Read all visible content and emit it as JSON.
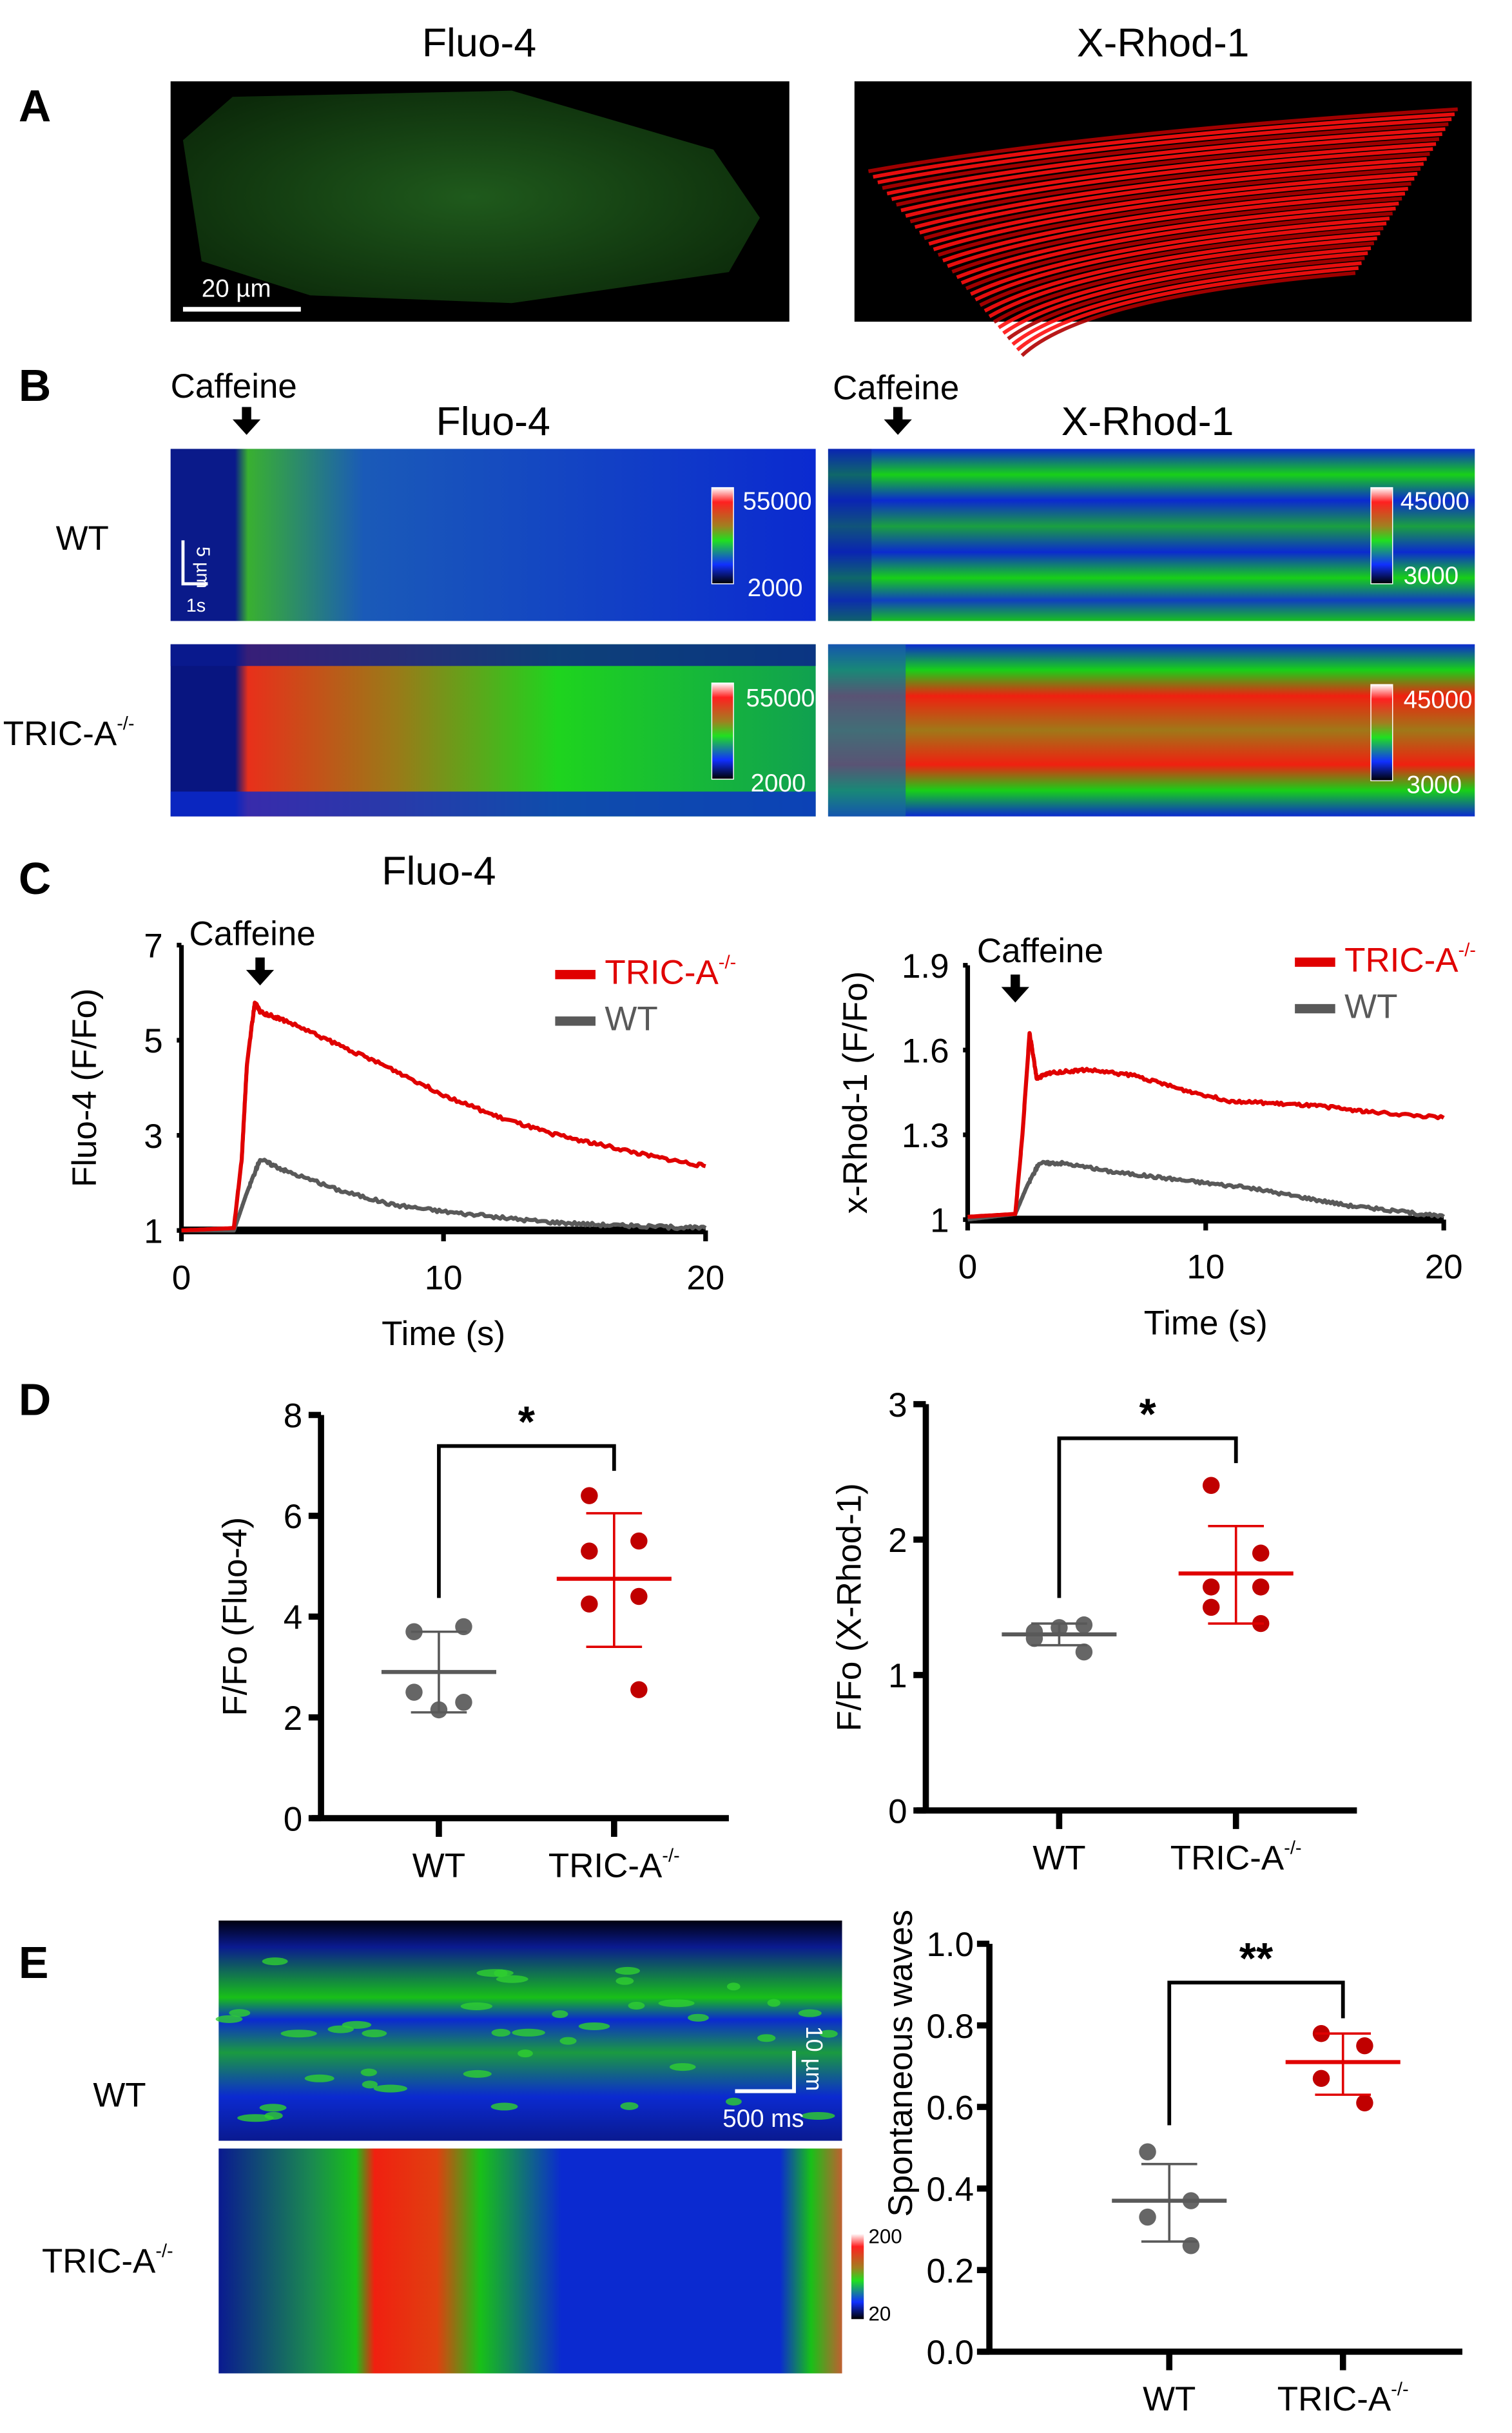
{
  "panel_labels": {
    "a": "A",
    "b": "B",
    "c": "C",
    "d": "D",
    "e": "E"
  },
  "panel_a": {
    "titles": [
      "Fluo-4",
      "X-Rhod-1"
    ],
    "scale_bar": "20 µm"
  },
  "panel_b": {
    "stimulus": "Caffeine",
    "titles": [
      "Fluo-4",
      "X-Rhod-1"
    ],
    "rows": [
      {
        "base": "WT",
        "sup": ""
      },
      {
        "base": "TRIC-A",
        "sup": "-/-"
      }
    ],
    "scale_bar_y": "5 µm",
    "scale_bar_x": "1s",
    "colorbars": {
      "fluo4": {
        "max": "55000",
        "min": "2000"
      },
      "xrhod1": {
        "max": "45000",
        "min": "3000"
      }
    }
  },
  "panel_c": {
    "title": "Fluo-4",
    "stimulus": "Caffeine"
  },
  "panel_e": {
    "rows": [
      {
        "base": "WT",
        "sup": ""
      },
      {
        "base": "TRIC-A",
        "sup": "-/-"
      }
    ],
    "scale_bar_y": "10 µm",
    "scale_bar_x": "500 ms",
    "colorbar": {
      "max": "200",
      "min": "20"
    }
  },
  "colors": {
    "tric": "#e00000",
    "wt": "#595959",
    "tric_dot": "#c00000",
    "wt_dot": "#666666"
  },
  "chart_data": [
    {
      "id": "c_fluo4",
      "type": "line",
      "title": "",
      "xlabel": "Time (s)",
      "ylabel": "Fluo-4 (F/Fo)",
      "xlim": [
        0,
        20
      ],
      "ylim": [
        1,
        7
      ],
      "xticks": [
        "0",
        "10",
        "20"
      ],
      "yticks": [
        "1",
        "3",
        "5",
        "7"
      ],
      "legend": "top-right",
      "annotation": {
        "text": "Caffeine",
        "x": 3
      },
      "series": [
        {
          "name": "TRIC-A",
          "sup": "-/-",
          "color": "#e00000",
          "x": [
            0,
            2,
            2.3,
            2.5,
            2.8,
            3,
            4,
            6,
            8,
            10,
            12,
            14,
            16,
            18,
            20
          ],
          "y": [
            1,
            1.05,
            2.5,
            4.5,
            5.8,
            5.6,
            5.4,
            4.9,
            4.4,
            3.85,
            3.4,
            3.05,
            2.8,
            2.55,
            2.35
          ]
        },
        {
          "name": "WT",
          "sup": "",
          "color": "#595959",
          "x": [
            0,
            2,
            2.5,
            3,
            4,
            6,
            8,
            10,
            12,
            14,
            16,
            18,
            20
          ],
          "y": [
            1,
            1,
            1.8,
            2.5,
            2.25,
            1.85,
            1.55,
            1.4,
            1.28,
            1.18,
            1.12,
            1.08,
            1.05
          ]
        }
      ]
    },
    {
      "id": "c_xrhod1",
      "type": "line",
      "title": "",
      "xlabel": "Time (s)",
      "ylabel": "x-Rhod-1 (F/Fo)",
      "xlim": [
        0,
        20
      ],
      "ylim": [
        1,
        1.9
      ],
      "xticks": [
        "0",
        "10",
        "20"
      ],
      "yticks": [
        "1",
        "1.3",
        "1.6",
        "1.9"
      ],
      "legend": "top-right",
      "annotation": {
        "text": "Caffeine",
        "x": 2
      },
      "series": [
        {
          "name": "TRIC-A",
          "sup": "-/-",
          "color": "#e00000",
          "x": [
            0,
            2,
            2.3,
            2.6,
            2.9,
            3.5,
            5,
            7,
            9,
            11,
            13,
            15,
            17,
            20
          ],
          "y": [
            1.01,
            1.02,
            1.3,
            1.66,
            1.5,
            1.52,
            1.53,
            1.51,
            1.46,
            1.42,
            1.41,
            1.4,
            1.38,
            1.36
          ]
        },
        {
          "name": "WT",
          "sup": "",
          "color": "#595959",
          "x": [
            0,
            2,
            2.5,
            3,
            4,
            6,
            8,
            10,
            12,
            14,
            16,
            18,
            20
          ],
          "y": [
            1,
            1.02,
            1.12,
            1.2,
            1.2,
            1.17,
            1.15,
            1.13,
            1.11,
            1.08,
            1.05,
            1.03,
            1.01
          ]
        }
      ]
    },
    {
      "id": "d_fluo4",
      "type": "scatter",
      "ylabel": "F/Fo (Fluo-4)",
      "ylim": [
        0,
        8
      ],
      "yticks": [
        "0",
        "2",
        "4",
        "6",
        "8"
      ],
      "categories": [
        {
          "base": "WT",
          "sup": ""
        },
        {
          "base": "TRIC-A",
          "sup": "-/-"
        }
      ],
      "significance": "*",
      "series": [
        {
          "name": "WT",
          "values": [
            3.7,
            3.8,
            2.5,
            2.3,
            2.15
          ],
          "mean": 2.9,
          "sd_low": 2.1,
          "sd_high": 3.7
        },
        {
          "name": "TRIC-A-/-",
          "values": [
            6.4,
            5.5,
            5.3,
            4.4,
            4.25,
            2.55
          ],
          "mean": 4.75,
          "sd_low": 3.4,
          "sd_high": 6.05
        }
      ]
    },
    {
      "id": "d_xrhod1",
      "type": "scatter",
      "ylabel": "F/Fo (X-Rhod-1)",
      "ylim": [
        0,
        3
      ],
      "yticks": [
        "0",
        "1",
        "2",
        "3"
      ],
      "categories": [
        {
          "base": "WT",
          "sup": ""
        },
        {
          "base": "TRIC-A",
          "sup": "-/-"
        }
      ],
      "significance": "*",
      "series": [
        {
          "name": "WT",
          "values": [
            1.32,
            1.37,
            1.27,
            1.17,
            1.35
          ],
          "mean": 1.3,
          "sd_low": 1.22,
          "sd_high": 1.38
        },
        {
          "name": "TRIC-A-/-",
          "values": [
            2.4,
            1.9,
            1.65,
            1.65,
            1.5,
            1.38
          ],
          "mean": 1.75,
          "sd_low": 1.38,
          "sd_high": 2.1
        }
      ]
    },
    {
      "id": "e_waves",
      "type": "scatter",
      "ylabel": "Spontaneous waves",
      "ylim": [
        0,
        1
      ],
      "yticks": [
        "0.0",
        "0.2",
        "0.4",
        "0.6",
        "0.8",
        "1.0"
      ],
      "categories": [
        {
          "base": "WT",
          "sup": ""
        },
        {
          "base": "TRIC-A",
          "sup": "-/-"
        }
      ],
      "significance": "**",
      "series": [
        {
          "name": "WT",
          "values": [
            0.49,
            0.37,
            0.33,
            0.26
          ],
          "mean": 0.37,
          "sd_low": 0.27,
          "sd_high": 0.46
        },
        {
          "name": "TRIC-A-/-",
          "values": [
            0.78,
            0.75,
            0.67,
            0.61
          ],
          "mean": 0.71,
          "sd_low": 0.63,
          "sd_high": 0.78
        }
      ]
    }
  ]
}
